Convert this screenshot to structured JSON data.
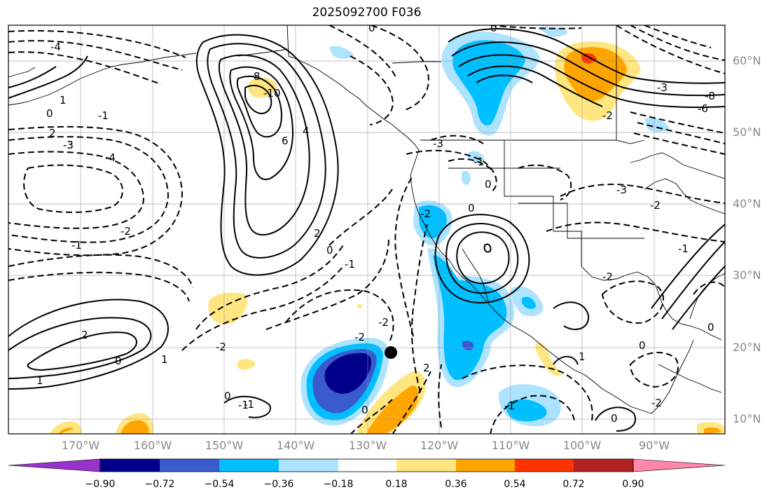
{
  "title": "2025092700 F036",
  "lat_labels": [
    "60°N",
    "50°N",
    "40°N",
    "30°N",
    "20°N",
    "10°N"
  ],
  "lon_labels": [
    "170°W",
    "160°W",
    "150°W",
    "140°W",
    "130°W",
    "120°W",
    "110°W",
    "100°W",
    "90°W"
  ],
  "colorbar": {
    "labels": [
      "−0.90",
      "−0.72",
      "−0.54",
      "−0.36",
      "−0.18",
      "0.18",
      "0.36",
      "0.54",
      "0.72",
      "0.90"
    ],
    "colors": [
      "#9932CC",
      "#00008B",
      "#3A5BCD",
      "#00BFFF",
      "#ADE3FF",
      "#FFFFFF",
      "#FFE680",
      "#FFA500",
      "#FF3300",
      "#B22222",
      "#FF88AA"
    ]
  },
  "contour_labels": [
    "-4",
    "-3",
    "-2",
    "-1",
    "0",
    "1",
    "2",
    "4",
    "6",
    "8",
    "-10",
    "-4",
    "-3",
    "-2",
    "-1",
    "0",
    "2",
    "-2",
    "-1",
    "0",
    "1",
    "2",
    "-2",
    "-3",
    "0",
    "-2",
    "-1",
    "1",
    "0",
    "-1",
    "0",
    "2",
    "0",
    "-1",
    "-2",
    "0",
    "-3",
    "-2",
    "-1",
    "1",
    "0",
    "0",
    "-6",
    "-8",
    "0",
    "-2",
    "-1",
    "-3",
    "0",
    "-2"
  ]
}
